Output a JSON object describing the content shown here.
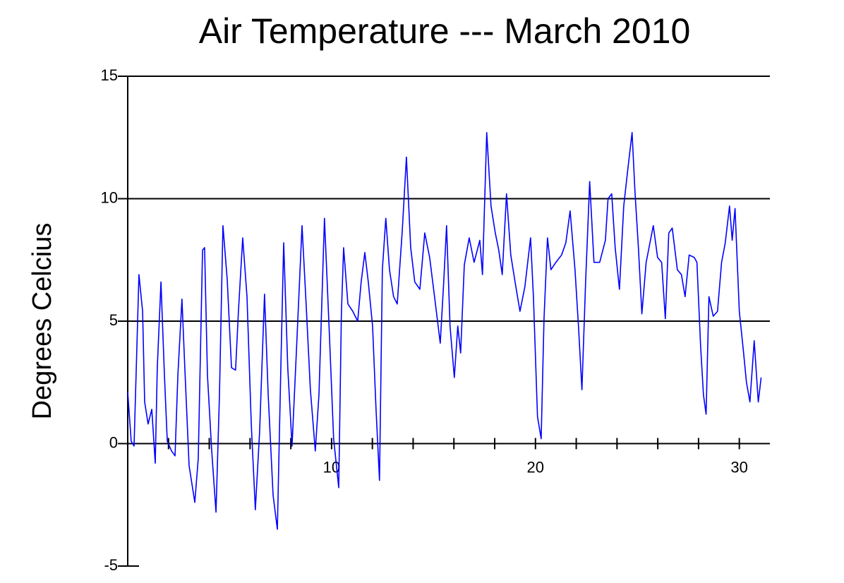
{
  "chart_data": {
    "type": "line",
    "title": "Air Temperature --- March 2010",
    "y_label": "Degrees Celcius",
    "xlim": [
      0,
      31.5
    ],
    "xticks": [
      10,
      20,
      30
    ],
    "minor_xticks": [
      2,
      4,
      6,
      8,
      12,
      14,
      16,
      18,
      22,
      24,
      26,
      28
    ],
    "ylim": [
      -5,
      15
    ],
    "yticks": [
      15,
      10,
      5,
      0,
      -5
    ],
    "grid": true,
    "x": [
      0,
      0.17,
      0.31,
      0.42,
      0.55,
      0.73,
      0.83,
      1.0,
      1.18,
      1.35,
      1.45,
      1.63,
      1.8,
      1.94,
      2.15,
      2.32,
      2.46,
      2.66,
      2.8,
      3.01,
      3.29,
      3.46,
      3.67,
      3.77,
      3.91,
      4.12,
      4.33,
      4.5,
      4.67,
      4.88,
      5.09,
      5.29,
      5.43,
      5.64,
      5.85,
      6.06,
      6.26,
      6.47,
      6.71,
      6.89,
      7.13,
      7.34,
      7.51,
      7.65,
      7.85,
      8.06,
      8.27,
      8.55,
      8.75,
      8.96,
      9.2,
      9.38,
      9.65,
      9.9,
      10.1,
      10.35,
      10.48,
      10.59,
      10.8,
      11.04,
      11.28,
      11.45,
      11.63,
      11.8,
      12.01,
      12.18,
      12.35,
      12.49,
      12.66,
      12.84,
      13.04,
      13.22,
      13.46,
      13.67,
      13.88,
      14.08,
      14.33,
      14.57,
      14.81,
      15.05,
      15.33,
      15.5,
      15.64,
      15.81,
      16.02,
      16.19,
      16.33,
      16.51,
      16.75,
      16.99,
      17.27,
      17.4,
      17.61,
      17.82,
      18.03,
      18.2,
      18.37,
      18.58,
      18.79,
      19.0,
      19.24,
      19.48,
      19.76,
      19.9,
      20.1,
      20.28,
      20.42,
      20.59,
      20.76,
      21.0,
      21.28,
      21.49,
      21.7,
      21.94,
      22.11,
      22.28,
      22.46,
      22.66,
      22.87,
      23.15,
      23.43,
      23.56,
      23.74,
      23.91,
      24.12,
      24.33,
      24.53,
      24.74,
      24.88,
      25.05,
      25.22,
      25.43,
      25.64,
      25.78,
      25.99,
      26.19,
      26.37,
      26.54,
      26.71,
      26.96,
      27.16,
      27.34,
      27.54,
      27.79,
      27.92,
      28.1,
      28.24,
      28.37,
      28.51,
      28.72,
      28.93,
      29.13,
      29.31,
      29.52,
      29.65,
      29.79,
      30.0,
      30.21,
      30.35,
      30.52,
      30.73,
      30.93,
      31.07
    ],
    "series": [
      {
        "color": "#0000ff",
        "values": [
          2.1,
          0.1,
          -0.1,
          3.1,
          6.9,
          5.4,
          1.7,
          0.8,
          1.4,
          -0.8,
          3.1,
          6.6,
          2.8,
          0.1,
          -0.3,
          -0.5,
          2.8,
          5.9,
          3.1,
          -0.9,
          -2.4,
          -0.6,
          7.9,
          8.0,
          2.8,
          -0.3,
          -2.8,
          2.0,
          8.9,
          6.7,
          3.1,
          3.0,
          5.4,
          8.4,
          6.0,
          0.8,
          -2.7,
          0.5,
          6.1,
          2.0,
          -2.1,
          -3.5,
          3.1,
          8.2,
          3.1,
          -0.1,
          3.7,
          8.9,
          5.7,
          2.2,
          -0.3,
          2.0,
          9.2,
          4.3,
          0.2,
          -1.8,
          5.3,
          8.0,
          5.7,
          5.4,
          5.0,
          6.6,
          7.8,
          6.6,
          4.8,
          1.4,
          -1.5,
          7.1,
          9.2,
          7.1,
          6.0,
          5.7,
          8.6,
          11.7,
          8.0,
          6.6,
          6.3,
          8.6,
          7.6,
          6.0,
          4.1,
          6.6,
          8.9,
          4.8,
          2.7,
          4.8,
          3.7,
          7.3,
          8.4,
          7.4,
          8.3,
          6.9,
          12.7,
          9.7,
          8.6,
          7.9,
          6.9,
          10.2,
          7.7,
          6.6,
          5.4,
          6.4,
          8.4,
          6.0,
          1.1,
          0.2,
          5.1,
          8.4,
          7.1,
          7.4,
          7.7,
          8.2,
          9.5,
          7.1,
          4.8,
          2.2,
          6.6,
          10.7,
          7.4,
          7.4,
          8.3,
          10.0,
          10.2,
          8.0,
          6.3,
          9.7,
          11.2,
          12.7,
          10.3,
          8.0,
          5.3,
          7.4,
          8.3,
          8.9,
          7.6,
          7.4,
          5.1,
          8.6,
          8.8,
          7.1,
          6.9,
          6.0,
          7.7,
          7.6,
          7.4,
          4.0,
          2.0,
          1.2,
          6.0,
          5.2,
          5.4,
          7.4,
          8.2,
          9.7,
          8.3,
          9.6,
          5.4,
          3.7,
          2.5,
          1.7,
          4.2,
          1.7,
          2.7
        ]
      }
    ]
  }
}
